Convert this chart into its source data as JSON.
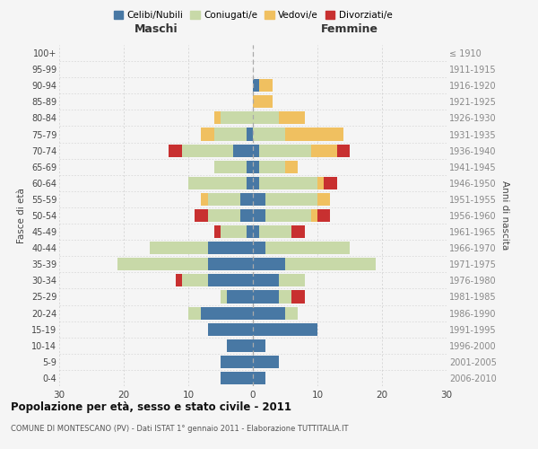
{
  "age_groups": [
    "0-4",
    "5-9",
    "10-14",
    "15-19",
    "20-24",
    "25-29",
    "30-34",
    "35-39",
    "40-44",
    "45-49",
    "50-54",
    "55-59",
    "60-64",
    "65-69",
    "70-74",
    "75-79",
    "80-84",
    "85-89",
    "90-94",
    "95-99",
    "100+"
  ],
  "birth_years": [
    "2006-2010",
    "2001-2005",
    "1996-2000",
    "1991-1995",
    "1986-1990",
    "1981-1985",
    "1976-1980",
    "1971-1975",
    "1966-1970",
    "1961-1965",
    "1956-1960",
    "1951-1955",
    "1946-1950",
    "1941-1945",
    "1936-1940",
    "1931-1935",
    "1926-1930",
    "1921-1925",
    "1916-1920",
    "1911-1915",
    "≤ 1910"
  ],
  "male": {
    "celibi": [
      5,
      5,
      4,
      7,
      8,
      4,
      7,
      7,
      7,
      1,
      2,
      2,
      1,
      1,
      3,
      1,
      0,
      0,
      0,
      0,
      0
    ],
    "coniugati": [
      0,
      0,
      0,
      0,
      2,
      1,
      4,
      14,
      9,
      4,
      5,
      5,
      9,
      5,
      8,
      5,
      5,
      0,
      0,
      0,
      0
    ],
    "vedovi": [
      0,
      0,
      0,
      0,
      0,
      0,
      0,
      0,
      0,
      0,
      0,
      1,
      0,
      0,
      0,
      2,
      1,
      0,
      0,
      0,
      0
    ],
    "divorziati": [
      0,
      0,
      0,
      0,
      0,
      0,
      1,
      0,
      0,
      1,
      2,
      0,
      0,
      0,
      2,
      0,
      0,
      0,
      0,
      0,
      0
    ]
  },
  "female": {
    "nubili": [
      2,
      4,
      2,
      10,
      5,
      4,
      4,
      5,
      2,
      1,
      2,
      2,
      1,
      1,
      1,
      0,
      0,
      0,
      1,
      0,
      0
    ],
    "coniugate": [
      0,
      0,
      0,
      0,
      2,
      2,
      4,
      14,
      13,
      5,
      7,
      8,
      9,
      4,
      8,
      5,
      4,
      0,
      0,
      0,
      0
    ],
    "vedove": [
      0,
      0,
      0,
      0,
      0,
      0,
      0,
      0,
      0,
      0,
      1,
      2,
      1,
      2,
      4,
      9,
      4,
      3,
      2,
      0,
      0
    ],
    "divorziate": [
      0,
      0,
      0,
      0,
      0,
      2,
      0,
      0,
      0,
      2,
      2,
      0,
      2,
      0,
      2,
      0,
      0,
      0,
      0,
      0,
      0
    ]
  },
  "colors": {
    "celibi_nubili": "#4878a4",
    "coniugati": "#c8d9a8",
    "vedovi": "#f0c060",
    "divorziati": "#c83030"
  },
  "title": "Popolazione per età, sesso e stato civile - 2011",
  "subtitle": "COMUNE DI MONTESCANO (PV) - Dati ISTAT 1° gennaio 2011 - Elaborazione TUTTITALIA.IT",
  "xlabel_left": "Maschi",
  "xlabel_right": "Femmine",
  "ylabel_left": "Fasce di età",
  "ylabel_right": "Anni di nascita",
  "xlim": 30,
  "bg_color": "#f5f5f5",
  "grid_color": "#cccccc"
}
